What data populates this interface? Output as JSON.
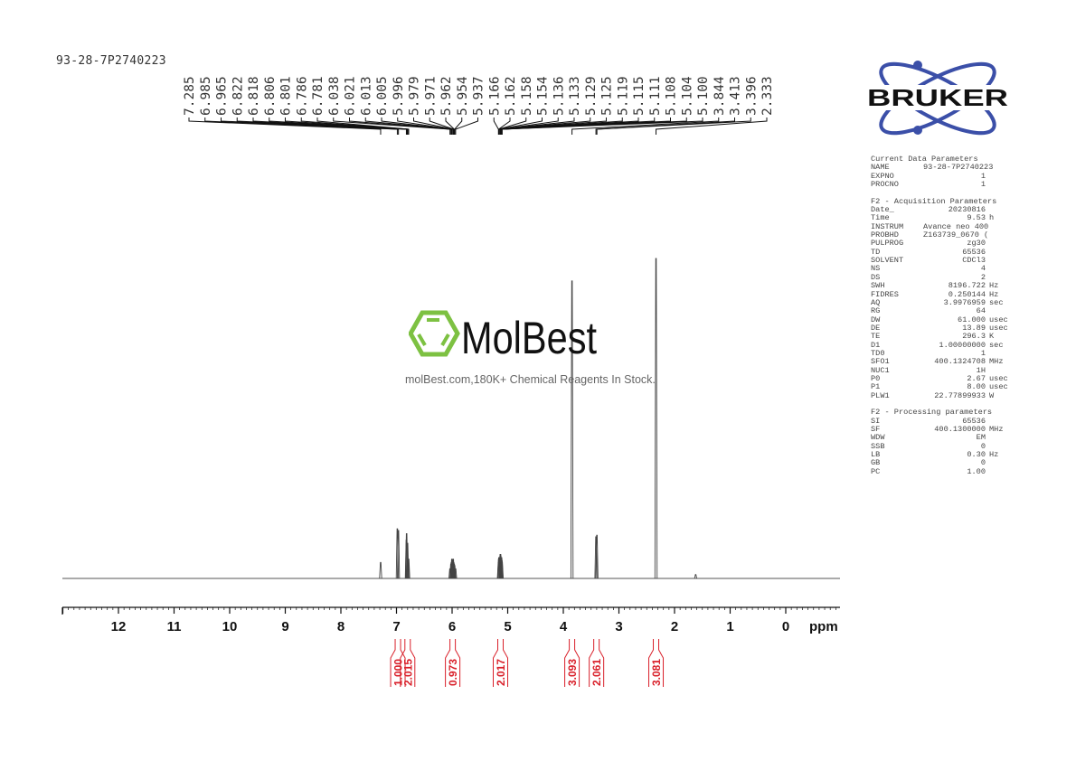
{
  "sample_name": "93-28-7P2740223",
  "watermark": {
    "brand": "MolBest",
    "tagline": "molBest.com,180K+ Chemical Reagents In Stock.",
    "color": "#7dc142"
  },
  "logo": {
    "brand": "BRUKER",
    "color": "#3b4fa8"
  },
  "colors": {
    "spectrum": "#444444",
    "integral": "#d9202a",
    "axis": "#111111"
  },
  "chart_data": {
    "type": "line",
    "xlabel": "ppm",
    "xlim": [
      13,
      -1
    ],
    "x_reversed": true,
    "x_ticks": [
      12,
      11,
      10,
      9,
      8,
      7,
      6,
      5,
      4,
      3,
      2,
      1,
      0
    ],
    "grid": false,
    "peak_labels": [
      "7.285",
      "6.985",
      "6.965",
      "6.822",
      "6.818",
      "6.806",
      "6.801",
      "6.786",
      "6.781",
      "6.038",
      "6.021",
      "6.013",
      "6.005",
      "5.996",
      "5.979",
      "5.971",
      "5.962",
      "5.954",
      "5.937",
      "5.166",
      "5.162",
      "5.158",
      "5.154",
      "5.136",
      "5.133",
      "5.129",
      "5.125",
      "5.119",
      "5.115",
      "5.111",
      "5.108",
      "5.104",
      "5.100",
      "3.844",
      "3.413",
      "3.396",
      "2.333"
    ],
    "peaks": [
      {
        "ppm": 7.285,
        "intensity": 5
      },
      {
        "ppm": 6.985,
        "intensity": 15.5
      },
      {
        "ppm": 6.965,
        "intensity": 15
      },
      {
        "ppm": 6.822,
        "intensity": 12
      },
      {
        "ppm": 6.818,
        "intensity": 14
      },
      {
        "ppm": 6.806,
        "intensity": 10
      },
      {
        "ppm": 6.801,
        "intensity": 11
      },
      {
        "ppm": 6.786,
        "intensity": 6
      },
      {
        "ppm": 6.781,
        "intensity": 6
      },
      {
        "ppm": 6.038,
        "intensity": 3
      },
      {
        "ppm": 6.021,
        "intensity": 4.5
      },
      {
        "ppm": 6.013,
        "intensity": 5
      },
      {
        "ppm": 6.005,
        "intensity": 6
      },
      {
        "ppm": 5.996,
        "intensity": 5.5
      },
      {
        "ppm": 5.979,
        "intensity": 6
      },
      {
        "ppm": 5.971,
        "intensity": 5
      },
      {
        "ppm": 5.962,
        "intensity": 4.5
      },
      {
        "ppm": 5.954,
        "intensity": 4
      },
      {
        "ppm": 5.937,
        "intensity": 3
      },
      {
        "ppm": 5.166,
        "intensity": 5
      },
      {
        "ppm": 5.162,
        "intensity": 6
      },
      {
        "ppm": 5.158,
        "intensity": 6.5
      },
      {
        "ppm": 5.154,
        "intensity": 6
      },
      {
        "ppm": 5.136,
        "intensity": 7
      },
      {
        "ppm": 5.133,
        "intensity": 7.5
      },
      {
        "ppm": 5.129,
        "intensity": 7.5
      },
      {
        "ppm": 5.125,
        "intensity": 7
      },
      {
        "ppm": 5.119,
        "intensity": 6
      },
      {
        "ppm": 5.115,
        "intensity": 6.5
      },
      {
        "ppm": 5.111,
        "intensity": 6.5
      },
      {
        "ppm": 5.108,
        "intensity": 6
      },
      {
        "ppm": 5.104,
        "intensity": 5.5
      },
      {
        "ppm": 5.1,
        "intensity": 5
      },
      {
        "ppm": 3.844,
        "intensity": 93
      },
      {
        "ppm": 3.413,
        "intensity": 13
      },
      {
        "ppm": 3.396,
        "intensity": 13.5
      },
      {
        "ppm": 2.333,
        "intensity": 100
      },
      {
        "ppm": 1.62,
        "intensity": 1.2
      }
    ],
    "integrals": [
      {
        "ppm": 6.975,
        "value": "1.000"
      },
      {
        "ppm": 6.8,
        "value": "2.015"
      },
      {
        "ppm": 5.99,
        "value": "0.973"
      },
      {
        "ppm": 5.13,
        "value": "2.017"
      },
      {
        "ppm": 3.844,
        "value": "3.093"
      },
      {
        "ppm": 3.404,
        "value": "2.061"
      },
      {
        "ppm": 2.333,
        "value": "3.081"
      }
    ]
  },
  "parameters": {
    "sections": [
      {
        "title": "Current Data Parameters",
        "rows": [
          {
            "k": "NAME",
            "v": "93-28-7P2740223",
            "u": ""
          },
          {
            "k": "EXPNO",
            "v": "1",
            "u": ""
          },
          {
            "k": "PROCNO",
            "v": "1",
            "u": ""
          }
        ]
      },
      {
        "title": "F2 - Acquisition Parameters",
        "rows": [
          {
            "k": "Date_",
            "v": "20230816",
            "u": ""
          },
          {
            "k": "Time",
            "v": "9.53",
            "u": "h"
          },
          {
            "k": "INSTRUM",
            "v": "Avance neo 400",
            "u": ""
          },
          {
            "k": "PROBHD",
            "v": "Z163739_0670 (",
            "u": ""
          },
          {
            "k": "PULPROG",
            "v": "zg30",
            "u": ""
          },
          {
            "k": "TD",
            "v": "65536",
            "u": ""
          },
          {
            "k": "SOLVENT",
            "v": "CDCl3",
            "u": ""
          },
          {
            "k": "NS",
            "v": "4",
            "u": ""
          },
          {
            "k": "DS",
            "v": "2",
            "u": ""
          },
          {
            "k": "SWH",
            "v": "8196.722",
            "u": "Hz"
          },
          {
            "k": "FIDRES",
            "v": "0.250144",
            "u": "Hz"
          },
          {
            "k": "AQ",
            "v": "3.9976959",
            "u": "sec"
          },
          {
            "k": "RG",
            "v": "64",
            "u": ""
          },
          {
            "k": "DW",
            "v": "61.000",
            "u": "usec"
          },
          {
            "k": "DE",
            "v": "13.89",
            "u": "usec"
          },
          {
            "k": "TE",
            "v": "296.3",
            "u": "K"
          },
          {
            "k": "D1",
            "v": "1.00000000",
            "u": "sec"
          },
          {
            "k": "TD0",
            "v": "1",
            "u": ""
          },
          {
            "k": "SFO1",
            "v": "400.1324708",
            "u": "MHz"
          },
          {
            "k": "NUC1",
            "v": "1H",
            "u": ""
          },
          {
            "k": "P0",
            "v": "2.67",
            "u": "usec"
          },
          {
            "k": "P1",
            "v": "8.00",
            "u": "usec"
          },
          {
            "k": "PLW1",
            "v": "22.77899933",
            "u": "W"
          }
        ]
      },
      {
        "title": "F2 - Processing parameters",
        "rows": [
          {
            "k": "SI",
            "v": "65536",
            "u": ""
          },
          {
            "k": "SF",
            "v": "400.1300000",
            "u": "MHz"
          },
          {
            "k": "WDW",
            "v": "EM",
            "u": ""
          },
          {
            "k": "SSB",
            "v": "0",
            "u": ""
          },
          {
            "k": "LB",
            "v": "0.30",
            "u": "Hz"
          },
          {
            "k": "GB",
            "v": "0",
            "u": ""
          },
          {
            "k": "PC",
            "v": "1.00",
            "u": ""
          }
        ]
      }
    ]
  }
}
